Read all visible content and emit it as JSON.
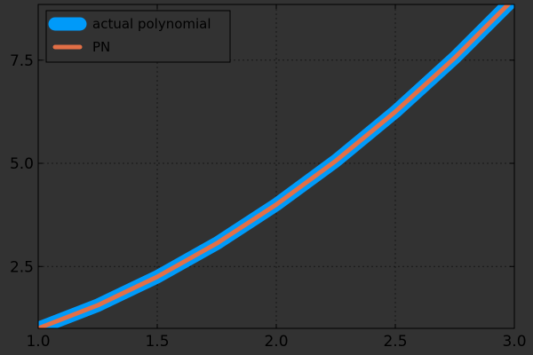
{
  "chart_data": {
    "type": "line",
    "title": "",
    "xlabel": "",
    "ylabel": "",
    "xlim": [
      1.0,
      3.0
    ],
    "ylim": [
      1.0,
      8.85
    ],
    "grid": true,
    "legend_position": "top-left",
    "x_ticks": [
      1.0,
      1.5,
      2.0,
      2.5,
      3.0
    ],
    "x_tick_labels": [
      "1.0",
      "1.5",
      "2.0",
      "2.5",
      "3.0"
    ],
    "y_ticks": [
      2.5,
      5.0,
      7.5
    ],
    "y_tick_labels": [
      "2.5",
      "5.0",
      "7.5"
    ],
    "series": [
      {
        "name": "actual polynomial",
        "color": "#009af9",
        "x": [
          1.0,
          1.25,
          1.5,
          1.75,
          2.0,
          2.25,
          2.5,
          2.75,
          3.0
        ],
        "y": [
          1.0,
          1.56,
          2.25,
          3.06,
          4.0,
          5.06,
          6.25,
          7.56,
          9.0
        ]
      },
      {
        "name": "PN",
        "color": "#e26f46",
        "x": [
          1.0,
          1.25,
          1.5,
          1.75,
          2.0,
          2.25,
          2.5,
          2.75,
          3.0
        ],
        "y": [
          1.0,
          1.56,
          2.25,
          3.06,
          4.0,
          5.06,
          6.25,
          7.56,
          9.0
        ]
      }
    ],
    "colors": {
      "background": "#323232",
      "plot_background": "#323232",
      "axis": "#000000",
      "grid": "#000000",
      "text": "#000000"
    }
  }
}
